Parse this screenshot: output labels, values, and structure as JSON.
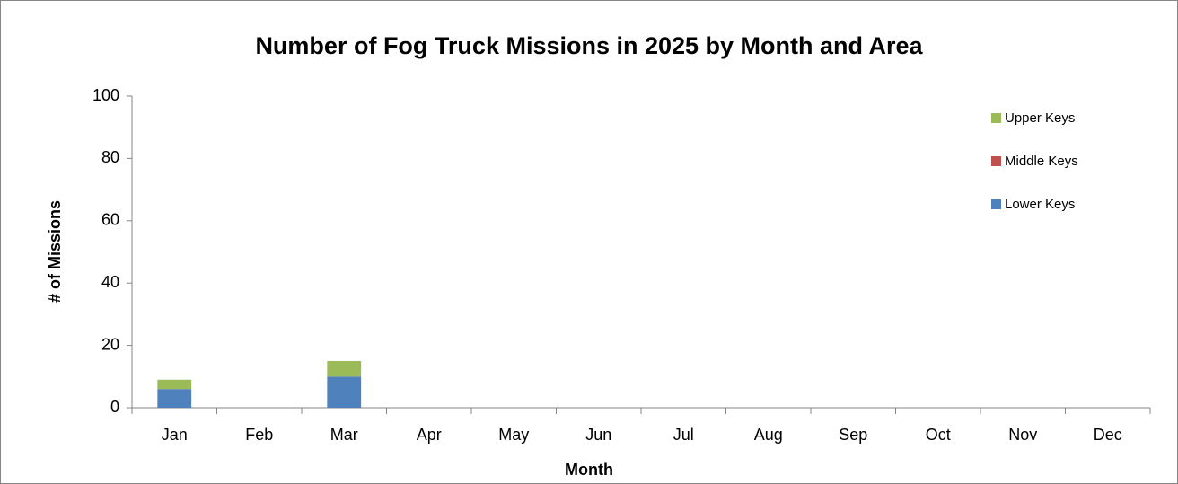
{
  "chart_data": {
    "type": "stacked_bar",
    "title": "Number of Fog Truck Missions in 2025 by Month and Area",
    "x_label": "Month",
    "y_label": "# of Missions",
    "categories": [
      "Jan",
      "Feb",
      "Mar",
      "Apr",
      "May",
      "Jun",
      "Jul",
      "Aug",
      "Sep",
      "Oct",
      "Nov",
      "Dec"
    ],
    "series": [
      {
        "name": "Lower Keys",
        "color": "#4f81bd",
        "values": [
          6,
          0,
          10,
          0,
          0,
          0,
          0,
          0,
          0,
          0,
          0,
          0
        ]
      },
      {
        "name": "Middle Keys",
        "color": "#c0504d",
        "values": [
          0,
          0,
          0,
          0,
          0,
          0,
          0,
          0,
          0,
          0,
          0,
          0
        ]
      },
      {
        "name": "Upper Keys",
        "color": "#9bbb59",
        "values": [
          3,
          0,
          5,
          0,
          0,
          0,
          0,
          0,
          0,
          0,
          0,
          0
        ]
      }
    ],
    "ylim": [
      0,
      100
    ],
    "yticks": [
      0,
      20,
      40,
      60,
      80,
      100
    ],
    "legend": "top-right"
  }
}
